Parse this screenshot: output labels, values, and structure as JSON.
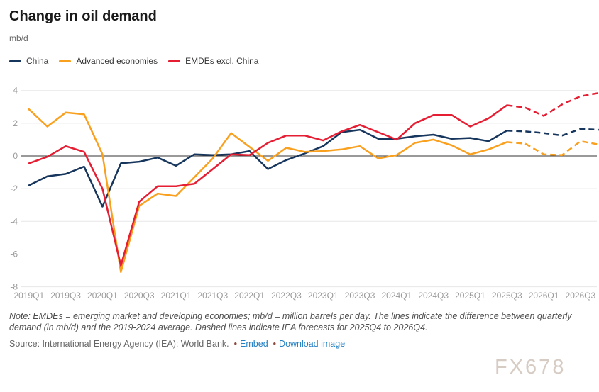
{
  "chart_data": {
    "type": "line",
    "title": "Change in oil demand",
    "ylabel": "mb/d",
    "xlabel": "",
    "x": [
      "2019Q1",
      "2019Q2",
      "2019Q3",
      "2019Q4",
      "2020Q1",
      "2020Q2",
      "2020Q3",
      "2020Q4",
      "2021Q1",
      "2021Q2",
      "2021Q3",
      "2021Q4",
      "2022Q1",
      "2022Q2",
      "2022Q3",
      "2022Q4",
      "2023Q1",
      "2023Q2",
      "2023Q3",
      "2023Q4",
      "2024Q1",
      "2024Q2",
      "2024Q3",
      "2024Q4",
      "2025Q1",
      "2025Q2",
      "2025Q3",
      "2025Q4",
      "2026Q1",
      "2026Q2",
      "2026Q3",
      "2026Q4"
    ],
    "x_tick_step": 2,
    "yticks": [
      4,
      2,
      0,
      -2,
      -4,
      -6,
      -8
    ],
    "ylim": [
      -8,
      4
    ],
    "grid": "horizontal",
    "legend_position": "top-left",
    "forecast_start_index": 26,
    "forecast_range": "2025Q4 to 2026Q4",
    "series": [
      {
        "name": "China",
        "color": "#17365d",
        "values": [
          -1.8,
          -1.25,
          -1.1,
          -0.65,
          -3.1,
          -0.45,
          -0.35,
          -0.1,
          -0.6,
          0.1,
          0.05,
          0.1,
          0.3,
          -0.8,
          -0.25,
          0.15,
          0.6,
          1.45,
          1.6,
          1.05,
          1.05,
          1.2,
          1.3,
          1.05,
          1.1,
          0.9,
          1.55,
          1.5,
          1.4,
          1.25,
          1.65,
          1.6
        ]
      },
      {
        "name": "Advanced economies",
        "color": "#f9a01f",
        "values": [
          2.85,
          1.8,
          2.65,
          2.55,
          0.1,
          -7.1,
          -3.05,
          -2.3,
          -2.45,
          -1.3,
          -0.15,
          1.4,
          0.55,
          -0.3,
          0.5,
          0.25,
          0.3,
          0.4,
          0.6,
          -0.15,
          0.05,
          0.8,
          1.0,
          0.65,
          0.1,
          0.4,
          0.85,
          0.75,
          0.1,
          0.05,
          0.9,
          0.7
        ]
      },
      {
        "name": "EMDEs excl. China",
        "color": "#e51e33",
        "values": [
          -0.45,
          -0.05,
          0.6,
          0.25,
          -2.0,
          -6.7,
          -2.8,
          -1.85,
          -1.85,
          -1.7,
          -0.8,
          0.1,
          0.05,
          0.8,
          1.25,
          1.25,
          0.95,
          1.5,
          1.9,
          1.45,
          1.0,
          2.0,
          2.5,
          2.5,
          1.8,
          2.3,
          3.1,
          2.95,
          2.45,
          3.15,
          3.65,
          3.85
        ]
      }
    ],
    "colors": {
      "grid": "#e7e7e7",
      "zero_line": "#333333",
      "tick_text": "#999999"
    }
  },
  "note": {
    "text": "Note: EMDEs = emerging market and developing economies; mb/d = million barrels per day. The lines indicate the difference between quarterly demand (in mb/d) and the 2019-2024 average. Dashed lines indicate IEA forecasts for 2025Q4 to 2026Q4."
  },
  "source": {
    "text": "Source: International Energy Agency (IEA); World Bank.",
    "bullet": "•",
    "links": [
      {
        "label": "Embed"
      },
      {
        "label": "Download image"
      }
    ]
  },
  "watermark": "FX678"
}
